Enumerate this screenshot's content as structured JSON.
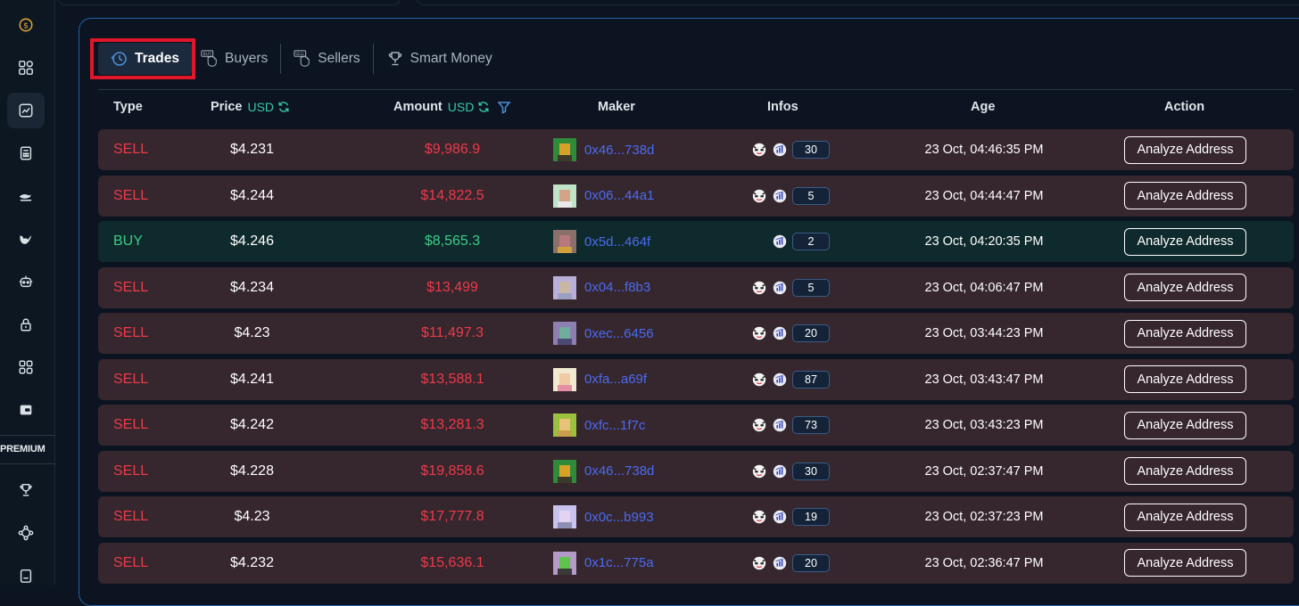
{
  "sidebar": {
    "premium_label": "PREMIUM",
    "icons": [
      "dollar-icon",
      "dashboard-icon",
      "chart-icon",
      "calculator-icon",
      "whale-transfer-icon",
      "whale-icon",
      "robot-icon",
      "lock-icon",
      "apps-icon",
      "wallet-icon",
      "trophy-icon",
      "network-icon",
      "device-icon"
    ]
  },
  "tabs": [
    {
      "label": "Trades",
      "icon": "history-icon"
    },
    {
      "label": "Buyers",
      "icon": "buy-hand-icon"
    },
    {
      "label": "Sellers",
      "icon": "sell-hand-icon"
    },
    {
      "label": "Smart Money",
      "icon": "trophy-icon"
    }
  ],
  "table": {
    "headers": {
      "type": "Type",
      "price": "Price",
      "price_unit": "USD",
      "amount": "Amount",
      "amount_unit": "USD",
      "maker": "Maker",
      "infos": "Infos",
      "age": "Age",
      "action": "Action"
    },
    "action_label": "Analyze Address",
    "rows": [
      {
        "type": "SELL",
        "price": "$4.231",
        "amount": "$9,986.9",
        "maker": "0x46...738d",
        "count": "30",
        "age": "23 Oct, 04:46:35 PM",
        "face": true,
        "avatar": [
          "#2f8a3a",
          "#d6a127",
          "#3b3a2a"
        ]
      },
      {
        "type": "SELL",
        "price": "$4.244",
        "amount": "$14,822.5",
        "maker": "0x06...44a1",
        "count": "5",
        "age": "23 Oct, 04:44:47 PM",
        "face": true,
        "avatar": [
          "#bfe3c6",
          "#d4a489",
          "#e9e9e9"
        ]
      },
      {
        "type": "BUY",
        "price": "$4.246",
        "amount": "$8,565.3",
        "maker": "0x5d...464f",
        "count": "2",
        "age": "23 Oct, 04:20:35 PM",
        "face": false,
        "avatar": [
          "#8a6f6a",
          "#b9787c",
          "#d0a23e"
        ]
      },
      {
        "type": "SELL",
        "price": "$4.234",
        "amount": "$13,499",
        "maker": "0x04...f8b3",
        "count": "5",
        "age": "23 Oct, 04:06:47 PM",
        "face": true,
        "avatar": [
          "#b9b0d9",
          "#c8b7a3",
          "#9aa0c2"
        ]
      },
      {
        "type": "SELL",
        "price": "$4.23",
        "amount": "$11,497.3",
        "maker": "0xec...6456",
        "count": "20",
        "age": "23 Oct, 03:44:23 PM",
        "face": true,
        "avatar": [
          "#8e7fb3",
          "#6fae9a",
          "#4b4a75"
        ]
      },
      {
        "type": "SELL",
        "price": "$4.241",
        "amount": "$13,588.1",
        "maker": "0xfa...a69f",
        "count": "87",
        "age": "23 Oct, 03:43:47 PM",
        "face": true,
        "avatar": [
          "#f2ead0",
          "#f0c9a5",
          "#e58fa7"
        ]
      },
      {
        "type": "SELL",
        "price": "$4.242",
        "amount": "$13,281.3",
        "maker": "0xfc...1f7c",
        "count": "73",
        "age": "23 Oct, 03:43:23 PM",
        "face": true,
        "avatar": [
          "#9bc23d",
          "#e8c27a",
          "#c9a04a"
        ]
      },
      {
        "type": "SELL",
        "price": "$4.228",
        "amount": "$19,858.6",
        "maker": "0x46...738d",
        "count": "30",
        "age": "23 Oct, 02:37:47 PM",
        "face": true,
        "avatar": [
          "#2f8a3a",
          "#d6a127",
          "#3b3a2a"
        ]
      },
      {
        "type": "SELL",
        "price": "$4.23",
        "amount": "$17,777.8",
        "maker": "0x0c...b993",
        "count": "19",
        "age": "23 Oct, 02:37:23 PM",
        "face": true,
        "avatar": [
          "#c7c2ee",
          "#e2d4f1",
          "#8f8fb6"
        ]
      },
      {
        "type": "SELL",
        "price": "$4.232",
        "amount": "$15,636.1",
        "maker": "0x1c...775a",
        "count": "20",
        "age": "23 Oct, 02:36:47 PM",
        "face": true,
        "avatar": [
          "#b49ac6",
          "#5fc44b",
          "#3a3a3a"
        ]
      }
    ]
  },
  "colors": {
    "sell": "#ec3b4a",
    "buy": "#3ecb86",
    "usd_accent": "#38c7a6",
    "address": "#4a6cf0",
    "highlight_box": "#e0162b"
  }
}
